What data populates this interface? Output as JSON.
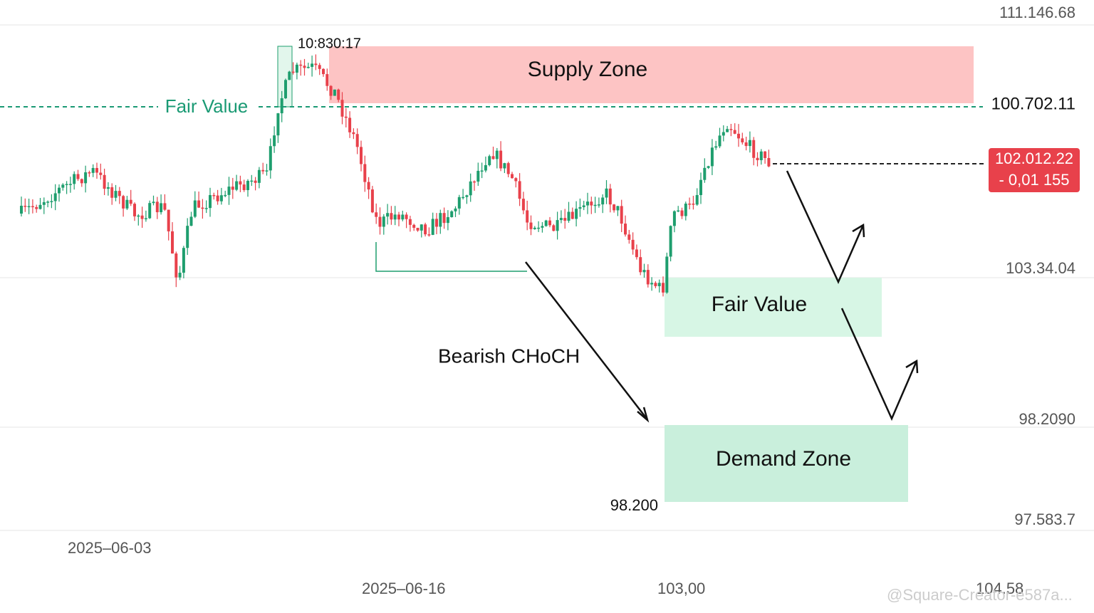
{
  "price_axis": {
    "labels": [
      "111.146.68",
      "100.702.11",
      "103.34.04",
      "98.2090",
      "97.583.7"
    ]
  },
  "time_axis": {
    "labels": [
      "2025–06-03",
      "2025–06-16",
      "103,00",
      "104.58"
    ]
  },
  "last_price": {
    "price": "102.012.22",
    "change": "- 0,01 155"
  },
  "annotations": {
    "top_label": "10:830:17",
    "fair_value_line": "Fair Value",
    "supply_zone": "Supply Zone",
    "fair_value_zone": "Fair Value",
    "demand_zone": "Demand Zone",
    "choch": "Bearish CHoCH",
    "demand_price": "98.200"
  },
  "watermark": "@Square-Creator-e587a..."
}
